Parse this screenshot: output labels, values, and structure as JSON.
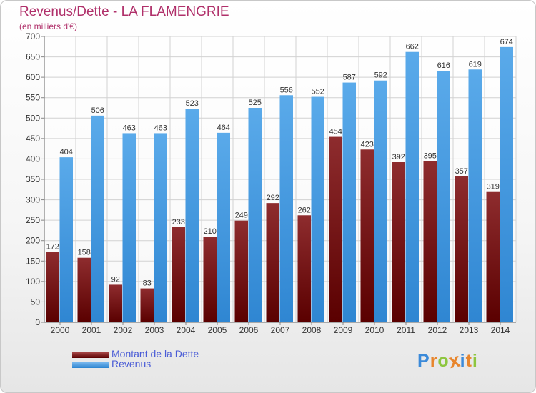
{
  "title": "Revenus/Dette - LA FLAMENGRIE",
  "subtitle": "(en milliers d'€)",
  "chart_data": {
    "type": "bar",
    "categories": [
      "2000",
      "2001",
      "2002",
      "2003",
      "2004",
      "2005",
      "2006",
      "2007",
      "2008",
      "2009",
      "2010",
      "2011",
      "2012",
      "2013",
      "2014"
    ],
    "series": [
      {
        "name": "Montant de la Dette",
        "color": "#7a1416",
        "values": [
          172,
          158,
          92,
          83,
          233,
          210,
          249,
          292,
          262,
          454,
          423,
          392,
          395,
          357,
          319
        ]
      },
      {
        "name": "Revenus",
        "color": "#4a9fe2",
        "values": [
          404,
          506,
          463,
          463,
          523,
          464,
          525,
          556,
          552,
          587,
          592,
          662,
          616,
          619,
          674
        ]
      }
    ],
    "ylim": [
      0,
      700
    ],
    "yticks": [
      0,
      50,
      100,
      150,
      200,
      250,
      300,
      350,
      400,
      450,
      500,
      550,
      600,
      650,
      700
    ],
    "grid": true,
    "legend_position": "bottom-left"
  },
  "logo": {
    "letters": [
      "P",
      "r",
      "o",
      "x",
      "i",
      "t",
      "i"
    ],
    "colors": [
      "#3b8ad9",
      "#e8852c",
      "#8dc63f",
      "#e8852c",
      "#3b8ad9",
      "#e8852c",
      "#8dc63f"
    ]
  }
}
